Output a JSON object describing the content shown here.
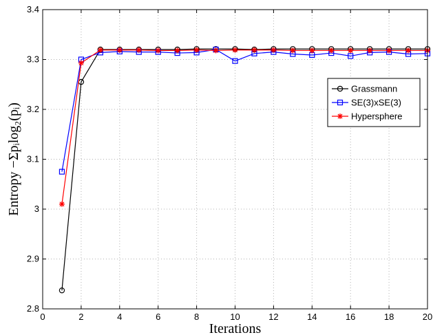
{
  "chart_data": {
    "type": "line",
    "xlabel": "Iterations",
    "ylabel": "Entropy −Σpᵢlog₂(pᵢ)",
    "xlim": [
      0,
      20
    ],
    "ylim": [
      2.8,
      3.4
    ],
    "x_ticks": [
      "0",
      "2",
      "4",
      "6",
      "8",
      "10",
      "12",
      "14",
      "16",
      "18",
      "20"
    ],
    "y_ticks": [
      "2.8",
      "2.9",
      "3",
      "3.1",
      "3.2",
      "3.3",
      "3.4"
    ],
    "grid": true,
    "legend_position": "right",
    "x": [
      1,
      2,
      3,
      4,
      5,
      6,
      7,
      8,
      9,
      10,
      11,
      12,
      13,
      14,
      15,
      16,
      17,
      18,
      19,
      20
    ],
    "series": [
      {
        "name": "Grassmann",
        "color": "#000000",
        "marker": "circle",
        "values": [
          2.837,
          3.255,
          3.32,
          3.32,
          3.32,
          3.32,
          3.32,
          3.321,
          3.321,
          3.321,
          3.32,
          3.321,
          3.321,
          3.321,
          3.321,
          3.321,
          3.321,
          3.321,
          3.321,
          3.321
        ]
      },
      {
        "name": "SE(3)xSE(3)",
        "color": "#0000ff",
        "marker": "square",
        "values": [
          3.075,
          3.3,
          3.314,
          3.316,
          3.315,
          3.315,
          3.313,
          3.314,
          3.32,
          3.297,
          3.312,
          3.315,
          3.311,
          3.309,
          3.313,
          3.307,
          3.314,
          3.315,
          3.311,
          3.312
        ]
      },
      {
        "name": "Hypersphere",
        "color": "#ff0000",
        "marker": "star",
        "values": [
          3.01,
          3.293,
          3.319,
          3.319,
          3.319,
          3.318,
          3.318,
          3.319,
          3.318,
          3.319,
          3.319,
          3.319,
          3.318,
          3.318,
          3.318,
          3.318,
          3.318,
          3.318,
          3.318,
          3.318
        ]
      }
    ]
  }
}
